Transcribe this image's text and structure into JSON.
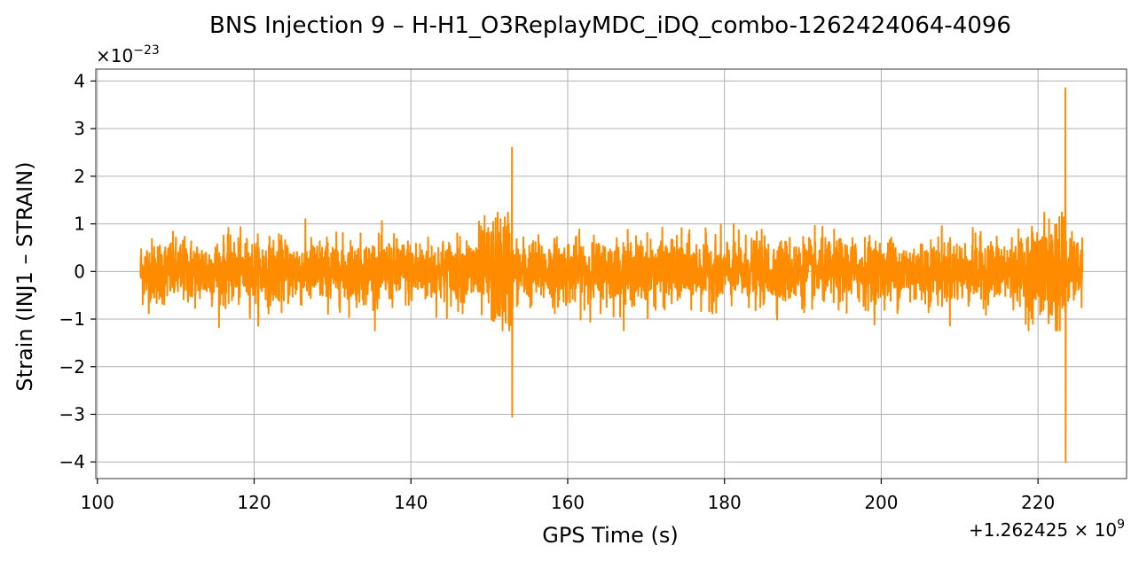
{
  "chart_data": {
    "type": "line",
    "title": "BNS Injection 9 – H-H1_O3ReplayMDC_iDQ_combo-1262424064-4096",
    "xlabel": "GPS Time (s)",
    "ylabel": "Strain (INJ1 – STRAIN)",
    "x_offset_label": "+1.262425 × 10^9",
    "y_scale_label": "×10^-23",
    "xlim": [
      99.8,
      231.3
    ],
    "ylim": [
      -4.35,
      4.25
    ],
    "x_ticks": [
      100,
      120,
      140,
      160,
      180,
      200,
      220
    ],
    "y_ticks": [
      -4,
      -3,
      -2,
      -1,
      0,
      1,
      2,
      3,
      4
    ],
    "grid": true,
    "series": [
      {
        "color": "#ff8c00",
        "x_start": 105.5,
        "x_end": 225.7,
        "baseline_amplitude": 0.8,
        "peaks": [
          {
            "x": 152.9,
            "min": -3.05,
            "max": 2.6
          },
          {
            "x": 223.5,
            "min": -4.0,
            "max": 3.85
          }
        ]
      }
    ]
  }
}
